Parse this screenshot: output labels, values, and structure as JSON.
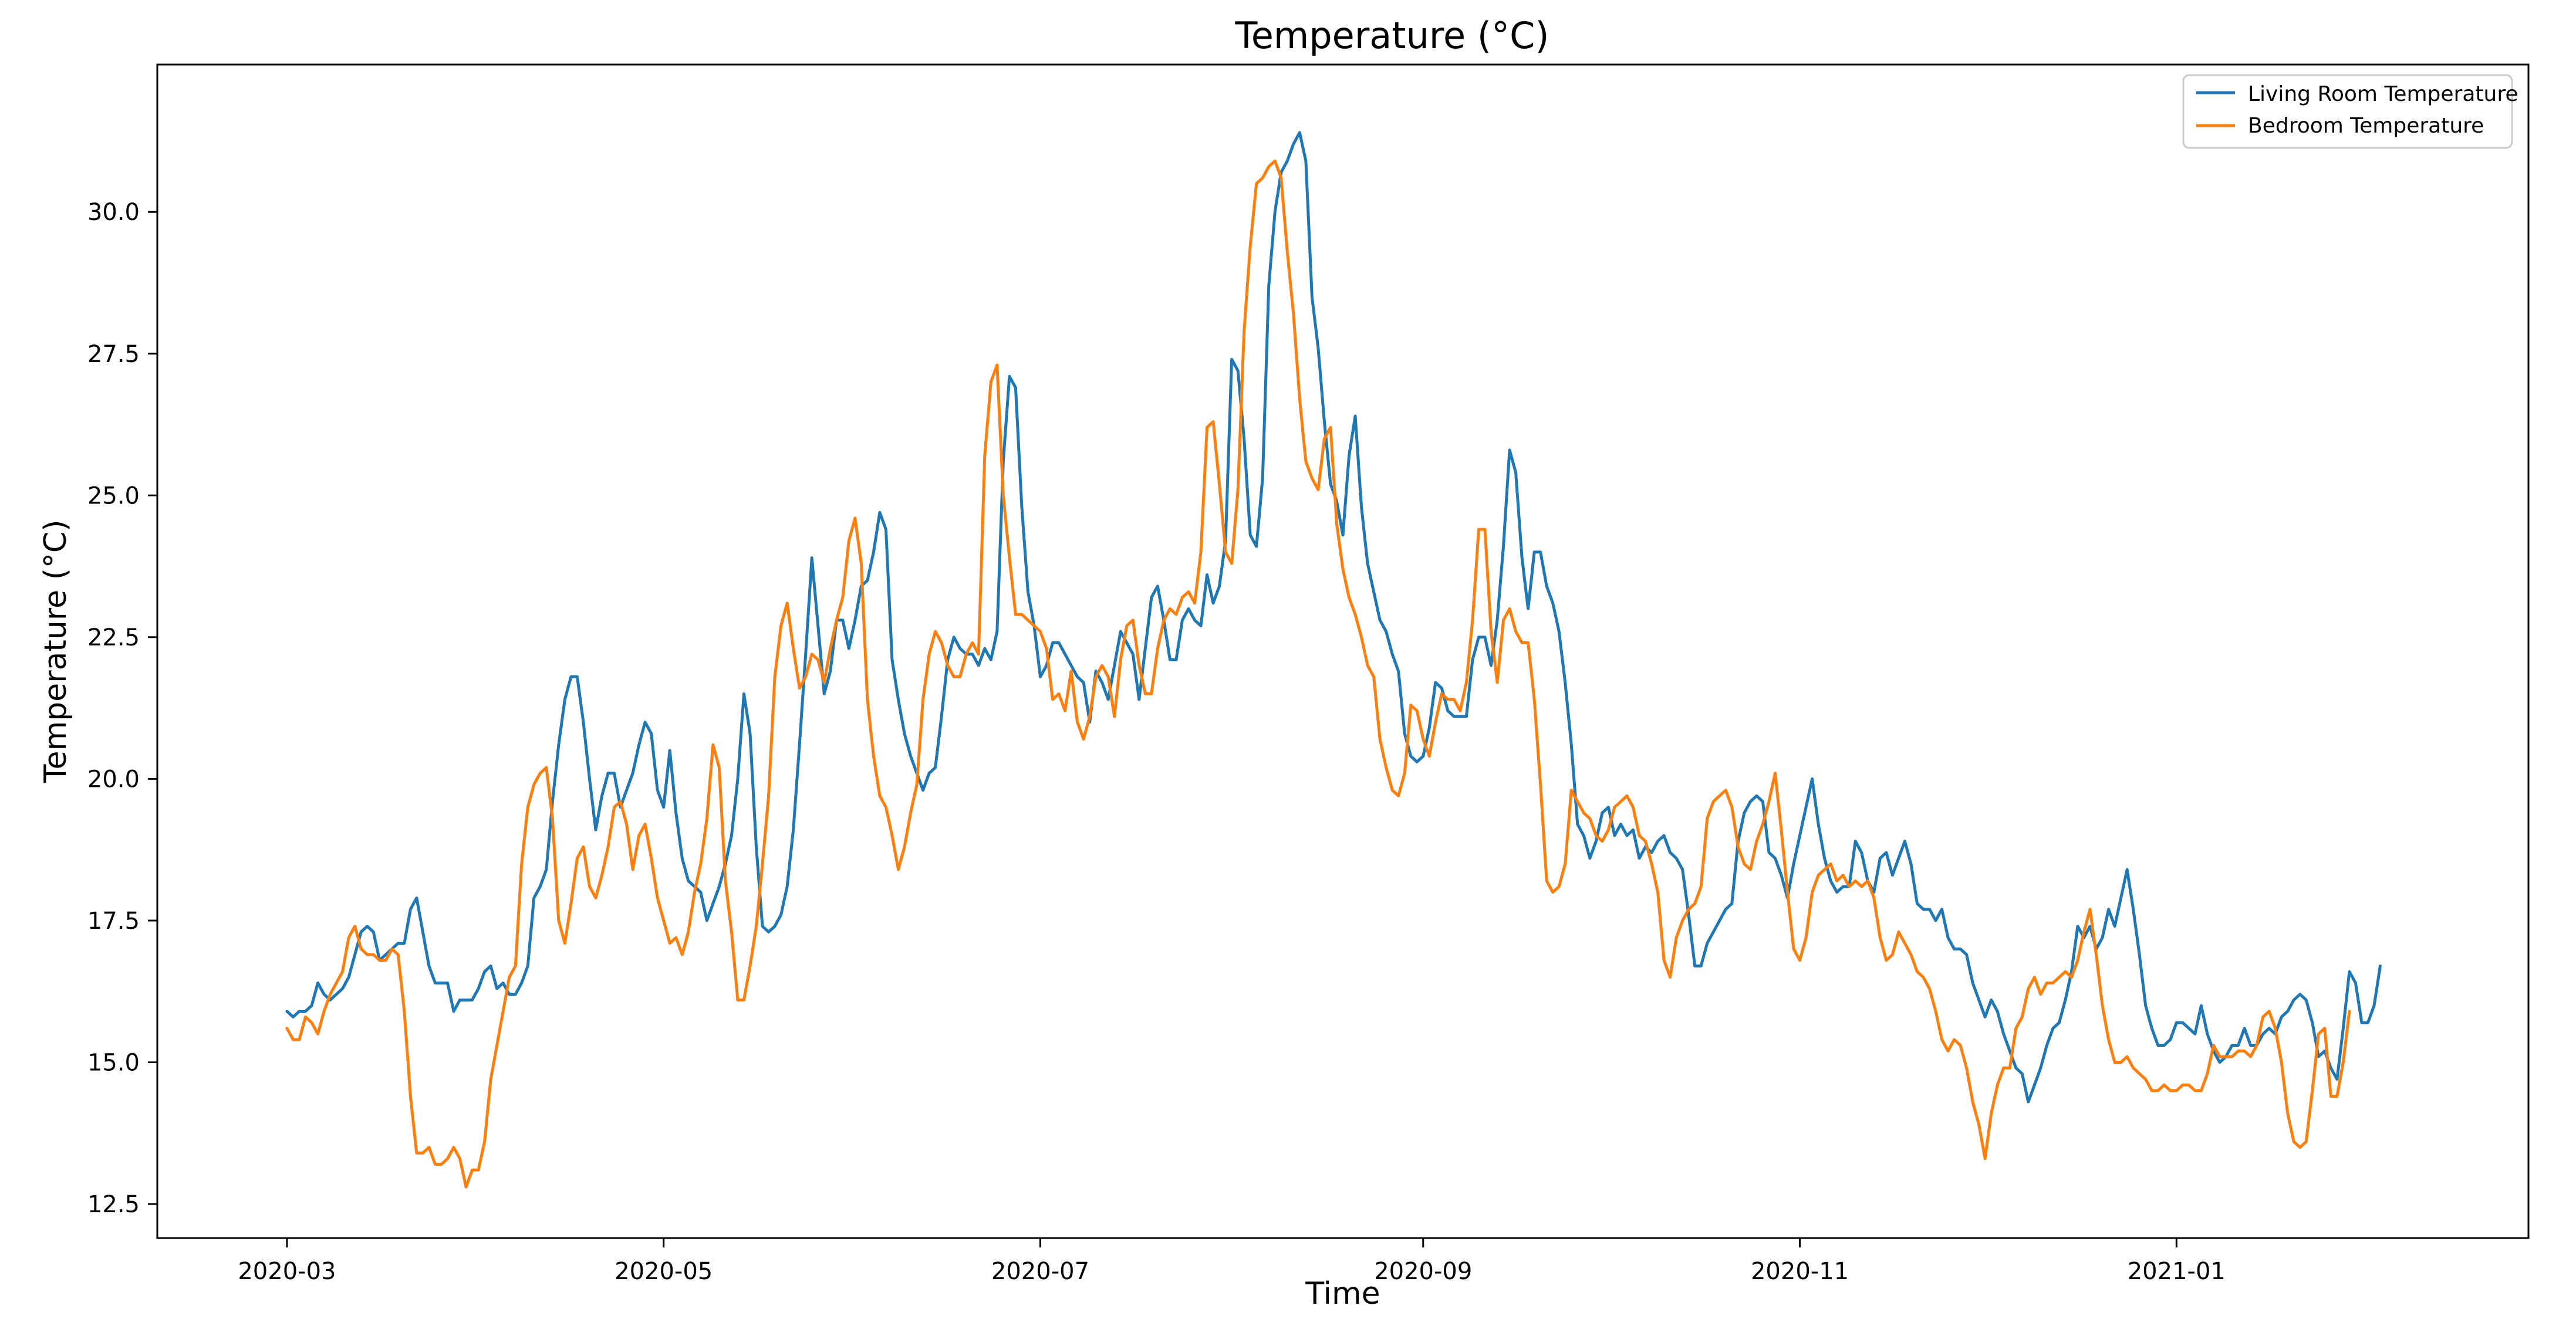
{
  "chart_data": {
    "type": "line",
    "title": "Temperature (°C)",
    "xlabel": "Time",
    "ylabel": "Temperature (°C)",
    "ylim": [
      11.9,
      32.6
    ],
    "xlim_days": [
      -21,
      363
    ],
    "x_start_date": "2020-03-02",
    "x_step_days": 1,
    "x_ticks": [
      {
        "day": 0,
        "label": "2020-03"
      },
      {
        "day": 61,
        "label": "2020-05"
      },
      {
        "day": 122,
        "label": "2020-07"
      },
      {
        "day": 184,
        "label": "2020-09"
      },
      {
        "day": 245,
        "label": "2020-11"
      },
      {
        "day": 306,
        "label": "2021-01"
      }
    ],
    "y_ticks": [
      12.5,
      15.0,
      17.5,
      20.0,
      22.5,
      25.0,
      27.5,
      30.0
    ],
    "y_tick_labels": [
      "12.5",
      "15.0",
      "17.5",
      "20.0",
      "22.5",
      "25.0",
      "27.5",
      "30.0"
    ],
    "grid": false,
    "legend_position": "top-right",
    "series": [
      {
        "name": "Living Room Temperature",
        "color": "#1f77b4",
        "values": [
          15.9,
          15.8,
          15.9,
          15.9,
          16.0,
          16.4,
          16.2,
          16.1,
          16.2,
          16.3,
          16.5,
          16.9,
          17.3,
          17.4,
          17.3,
          16.8,
          16.9,
          17.0,
          17.1,
          17.1,
          17.7,
          17.9,
          17.3,
          16.7,
          16.4,
          16.4,
          16.4,
          15.9,
          16.1,
          16.1,
          16.1,
          16.3,
          16.6,
          16.7,
          16.3,
          16.4,
          16.2,
          16.2,
          16.4,
          16.7,
          17.9,
          18.1,
          18.4,
          19.6,
          20.6,
          21.4,
          21.8,
          21.8,
          21.0,
          20.0,
          19.1,
          19.7,
          20.1,
          20.1,
          19.5,
          19.8,
          20.1,
          20.6,
          21.0,
          20.8,
          19.8,
          19.5,
          20.5,
          19.4,
          18.6,
          18.2,
          18.1,
          18.0,
          17.5,
          17.8,
          18.1,
          18.5,
          19.0,
          20.0,
          21.5,
          20.8,
          18.8,
          17.4,
          17.3,
          17.4,
          17.6,
          18.1,
          19.1,
          20.6,
          22.2,
          23.9,
          22.7,
          21.5,
          21.9,
          22.8,
          22.8,
          22.3,
          22.8,
          23.4,
          23.5,
          24.0,
          24.7,
          24.4,
          22.1,
          21.4,
          20.8,
          20.4,
          20.1,
          19.8,
          20.1,
          20.2,
          21.1,
          22.1,
          22.5,
          22.3,
          22.2,
          22.2,
          22.0,
          22.3,
          22.1,
          22.6,
          25.6,
          27.1,
          26.9,
          24.8,
          23.3,
          22.7,
          21.8,
          22.0,
          22.4,
          22.4,
          22.2,
          22.0,
          21.8,
          21.7,
          21.0,
          21.9,
          21.7,
          21.4,
          22.0,
          22.6,
          22.4,
          22.2,
          21.4,
          22.3,
          23.2,
          23.4,
          22.8,
          22.1,
          22.1,
          22.8,
          23.0,
          22.8,
          22.7,
          23.6,
          23.1,
          23.4,
          24.2,
          27.4,
          27.2,
          26.0,
          24.3,
          24.1,
          25.3,
          28.7,
          30.0,
          30.7,
          30.9,
          31.2,
          31.4,
          30.9,
          28.5,
          27.6,
          26.3,
          25.2,
          24.9,
          24.3,
          25.7,
          26.4,
          24.8,
          23.8,
          23.3,
          22.8,
          22.6,
          22.2,
          21.9,
          20.8,
          20.4,
          20.3,
          20.4,
          20.9,
          21.7,
          21.6,
          21.2,
          21.1,
          21.1,
          21.1,
          22.1,
          22.5,
          22.5,
          22.0,
          22.8,
          24.1,
          25.8,
          25.4,
          23.9,
          23.0,
          24.0,
          24.0,
          23.4,
          23.1,
          22.6,
          21.7,
          20.6,
          19.2,
          19.0,
          18.6,
          18.9,
          19.4,
          19.5,
          19.0,
          19.2,
          19.0,
          19.1,
          18.6,
          18.8,
          18.7,
          18.9,
          19.0,
          18.7,
          18.6,
          18.4,
          17.6,
          16.7,
          16.7,
          17.1,
          17.3,
          17.5,
          17.7,
          17.8,
          18.9,
          19.4,
          19.6,
          19.7,
          19.6,
          18.7,
          18.6,
          18.3,
          17.9,
          18.5,
          19.0,
          19.5,
          20.0,
          19.2,
          18.6,
          18.2,
          18.0,
          18.1,
          18.1,
          18.9,
          18.7,
          18.2,
          18.0,
          18.6,
          18.7,
          18.3,
          18.6,
          18.9,
          18.5,
          17.8,
          17.7,
          17.7,
          17.5,
          17.7,
          17.2,
          17.0,
          17.0,
          16.9,
          16.4,
          16.1,
          15.8,
          16.1,
          15.9,
          15.5,
          15.2,
          14.9,
          14.8,
          14.3,
          14.6,
          14.9,
          15.3,
          15.6,
          15.7,
          16.1,
          16.6,
          17.4,
          17.2,
          17.4,
          17.0,
          17.2,
          17.7,
          17.4,
          17.9,
          18.4,
          17.7,
          16.9,
          16.0,
          15.6,
          15.3,
          15.3,
          15.4,
          15.7,
          15.7,
          15.6,
          15.5,
          16.0,
          15.5,
          15.2,
          15.0,
          15.1,
          15.3,
          15.3,
          15.6,
          15.3,
          15.3,
          15.5,
          15.6,
          15.5,
          15.8,
          15.9,
          16.1,
          16.2,
          16.1,
          15.7,
          15.1,
          15.2,
          14.9,
          14.7,
          15.6,
          16.6,
          16.4,
          15.7,
          15.7,
          16.0,
          16.7
        ]
      },
      {
        "name": "Bedroom Temperature",
        "color": "#ff7f0e",
        "values": [
          15.6,
          15.4,
          15.4,
          15.8,
          15.7,
          15.5,
          15.9,
          16.2,
          16.4,
          16.6,
          17.2,
          17.4,
          17.0,
          16.9,
          16.9,
          16.8,
          16.8,
          17.0,
          16.9,
          15.9,
          14.4,
          13.4,
          13.4,
          13.5,
          13.2,
          13.2,
          13.3,
          13.5,
          13.3,
          12.8,
          13.1,
          13.1,
          13.6,
          14.7,
          15.3,
          15.9,
          16.5,
          16.7,
          18.5,
          19.5,
          19.9,
          20.1,
          20.2,
          19.3,
          17.5,
          17.1,
          17.8,
          18.6,
          18.8,
          18.1,
          17.9,
          18.3,
          18.8,
          19.5,
          19.6,
          19.2,
          18.4,
          19.0,
          19.2,
          18.6,
          17.9,
          17.5,
          17.1,
          17.2,
          16.9,
          17.3,
          18.0,
          18.5,
          19.3,
          20.6,
          20.2,
          18.2,
          17.3,
          16.1,
          16.1,
          16.7,
          17.4,
          18.5,
          19.7,
          21.8,
          22.7,
          23.1,
          22.3,
          21.6,
          21.8,
          22.2,
          22.1,
          21.7,
          22.3,
          22.8,
          23.2,
          24.2,
          24.6,
          23.8,
          21.4,
          20.4,
          19.7,
          19.5,
          19.0,
          18.4,
          18.8,
          19.4,
          19.9,
          21.4,
          22.2,
          22.6,
          22.4,
          22.0,
          21.8,
          21.8,
          22.2,
          22.4,
          22.2,
          25.7,
          27.0,
          27.3,
          25.0,
          23.9,
          22.9,
          22.9,
          22.8,
          22.7,
          22.6,
          22.3,
          21.4,
          21.5,
          21.2,
          21.9,
          21.0,
          20.7,
          21.1,
          21.8,
          22.0,
          21.8,
          21.1,
          22.1,
          22.7,
          22.8,
          22.0,
          21.5,
          21.5,
          22.3,
          22.8,
          23.0,
          22.9,
          23.2,
          23.3,
          23.1,
          24.0,
          26.2,
          26.3,
          25.2,
          24.0,
          23.8,
          25.1,
          27.9,
          29.4,
          30.5,
          30.6,
          30.8,
          30.9,
          30.6,
          29.3,
          28.2,
          26.7,
          25.6,
          25.3,
          25.1,
          26.0,
          26.2,
          24.5,
          23.7,
          23.2,
          22.9,
          22.5,
          22.0,
          21.8,
          20.7,
          20.2,
          19.8,
          19.7,
          20.1,
          21.3,
          21.2,
          20.7,
          20.4,
          21.0,
          21.5,
          21.4,
          21.4,
          21.2,
          21.7,
          22.8,
          24.4,
          24.4,
          22.6,
          21.7,
          22.8,
          23.0,
          22.6,
          22.4,
          22.4,
          21.4,
          19.9,
          18.2,
          18.0,
          18.1,
          18.5,
          19.8,
          19.6,
          19.4,
          19.3,
          19.0,
          18.9,
          19.1,
          19.5,
          19.6,
          19.7,
          19.5,
          19.0,
          18.9,
          18.5,
          18.0,
          16.8,
          16.5,
          17.2,
          17.5,
          17.7,
          17.8,
          18.1,
          19.3,
          19.6,
          19.7,
          19.8,
          19.5,
          18.8,
          18.5,
          18.4,
          18.9,
          19.2,
          19.6,
          20.1,
          19.1,
          18.0,
          17.0,
          16.8,
          17.2,
          18.0,
          18.3,
          18.4,
          18.5,
          18.2,
          18.3,
          18.1,
          18.2,
          18.1,
          18.2,
          17.9,
          17.2,
          16.8,
          16.9,
          17.3,
          17.1,
          16.9,
          16.6,
          16.5,
          16.3,
          15.9,
          15.4,
          15.2,
          15.4,
          15.3,
          14.9,
          14.3,
          13.9,
          13.3,
          14.1,
          14.6,
          14.9,
          14.9,
          15.6,
          15.8,
          16.3,
          16.5,
          16.2,
          16.4,
          16.4,
          16.5,
          16.6,
          16.5,
          16.8,
          17.3,
          17.7,
          16.9,
          16.0,
          15.4,
          15.0,
          15.0,
          15.1,
          14.9,
          14.8,
          14.7,
          14.5,
          14.5,
          14.6,
          14.5,
          14.5,
          14.6,
          14.6,
          14.5,
          14.5,
          14.8,
          15.3,
          15.1,
          15.1,
          15.1,
          15.2,
          15.2,
          15.1,
          15.3,
          15.8,
          15.9,
          15.6,
          15.0,
          14.1,
          13.6,
          13.5,
          13.6,
          14.5,
          15.5,
          15.6,
          14.4,
          14.4,
          15.0,
          15.9
        ]
      }
    ]
  }
}
